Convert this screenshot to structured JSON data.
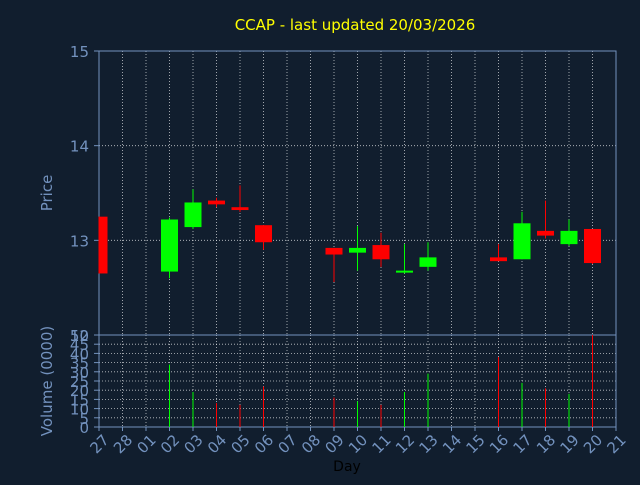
{
  "chart_data": {
    "type": "candlestick",
    "title": "CCAP - last updated 20/03/2026",
    "xlabel": "Day",
    "price_panel": {
      "ylabel": "Price",
      "ylim": [
        12,
        15
      ],
      "yticks": [
        "12",
        "13",
        "14",
        "15"
      ],
      "grid": true
    },
    "volume_panel": {
      "ylabel": "Volume (0000)",
      "ylim": [
        0,
        50
      ],
      "yticks": [
        "0",
        "5",
        "10",
        "15",
        "20",
        "25",
        "30",
        "35",
        "40",
        "45",
        "50"
      ],
      "grid": true
    },
    "categories": [
      "27",
      "28",
      "01",
      "02",
      "03",
      "04",
      "05",
      "06",
      "07",
      "08",
      "09",
      "10",
      "11",
      "12",
      "13",
      "14",
      "15",
      "16",
      "17",
      "18",
      "19",
      "20",
      "21"
    ],
    "candles": [
      {
        "day": "27",
        "open": 13.25,
        "high": 13.25,
        "low": 12.65,
        "close": 12.65,
        "volume": null
      },
      {
        "day": "02",
        "open": 12.67,
        "high": 13.24,
        "low": 12.6,
        "close": 13.22,
        "volume": 34
      },
      {
        "day": "03",
        "open": 13.14,
        "high": 13.54,
        "low": 13.12,
        "close": 13.4,
        "volume": 19
      },
      {
        "day": "04",
        "open": 13.42,
        "high": 13.45,
        "low": 13.35,
        "close": 13.38,
        "volume": 13
      },
      {
        "day": "05",
        "open": 13.35,
        "high": 13.58,
        "low": 13.3,
        "close": 13.32,
        "volume": 12
      },
      {
        "day": "06",
        "open": 13.16,
        "high": 13.16,
        "low": 12.9,
        "close": 12.98,
        "volume": 22
      },
      {
        "day": "09",
        "open": 12.92,
        "high": 12.92,
        "low": 12.56,
        "close": 12.85,
        "volume": 16
      },
      {
        "day": "10",
        "open": 12.87,
        "high": 13.15,
        "low": 12.68,
        "close": 12.92,
        "volume": 14
      },
      {
        "day": "11",
        "open": 12.95,
        "high": 13.08,
        "low": 12.72,
        "close": 12.8,
        "volume": 12
      },
      {
        "day": "12",
        "open": 12.68,
        "high": 12.96,
        "low": 12.65,
        "close": 12.68,
        "volume": 19
      },
      {
        "day": "13",
        "open": 12.72,
        "high": 12.98,
        "low": 12.68,
        "close": 12.82,
        "volume": 29
      },
      {
        "day": "16",
        "open": 12.82,
        "high": 12.96,
        "low": 12.78,
        "close": 12.78,
        "volume": 38
      },
      {
        "day": "17",
        "open": 12.8,
        "high": 13.3,
        "low": 12.8,
        "close": 13.18,
        "volume": 24
      },
      {
        "day": "18",
        "open": 13.1,
        "high": 13.42,
        "low": 13.02,
        "close": 13.05,
        "volume": 21
      },
      {
        "day": "19",
        "open": 12.96,
        "high": 13.22,
        "low": 12.94,
        "close": 13.1,
        "volume": 18
      },
      {
        "day": "20",
        "open": 13.12,
        "high": 13.12,
        "low": 12.75,
        "close": 12.76,
        "volume": 50
      }
    ],
    "colors": {
      "background": "#111e2e",
      "axes_fg": "#7392be",
      "grid": "#ffffff",
      "title": "#ffff00",
      "up": "#00ff00",
      "down": "#ff0000",
      "axis_label_dark": "#000000"
    }
  }
}
